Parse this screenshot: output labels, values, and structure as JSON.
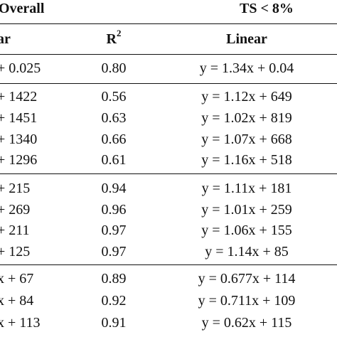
{
  "header": {
    "group_left": "Overall",
    "group_right": "TS < 8%",
    "col_left": "ar",
    "col_r2_base": "R",
    "col_r2_sup": "2",
    "col_linear": "Linear"
  },
  "groups": [
    {
      "rows": [
        {
          "left": "+ 0.025",
          "r2": "0.80",
          "linear": "y = 1.34x + 0.04"
        }
      ]
    },
    {
      "rows": [
        {
          "left": "+ 1422",
          "r2": "0.56",
          "linear": "y = 1.12x + 649"
        },
        {
          "left": "+ 1451",
          "r2": "0.63",
          "linear": "y = 1.02x + 819"
        },
        {
          "left": "+ 1340",
          "r2": "0.66",
          "linear": "y = 1.07x + 668"
        },
        {
          "left": "+ 1296",
          "r2": "0.61",
          "linear": "y = 1.16x + 518"
        }
      ]
    },
    {
      "rows": [
        {
          "left": "+ 215",
          "r2": "0.94",
          "linear": "y = 1.11x + 181"
        },
        {
          "left": "+ 269",
          "r2": "0.96",
          "linear": "y = 1.01x + 259"
        },
        {
          "left": "+ 211",
          "r2": "0.97",
          "linear": "y = 1.06x + 155"
        },
        {
          "left": "+ 125",
          "r2": "0.97",
          "linear": "y = 1.14x + 85"
        }
      ]
    },
    {
      "rows": [
        {
          "left": "x + 67",
          "r2": "0.89",
          "linear": "y = 0.677x + 114"
        },
        {
          "left": "x + 84",
          "r2": "0.92",
          "linear": "y = 0.711x + 109"
        },
        {
          "left": "x + 113",
          "r2": "0.91",
          "linear": "y = 0.62x + 115"
        }
      ]
    }
  ]
}
